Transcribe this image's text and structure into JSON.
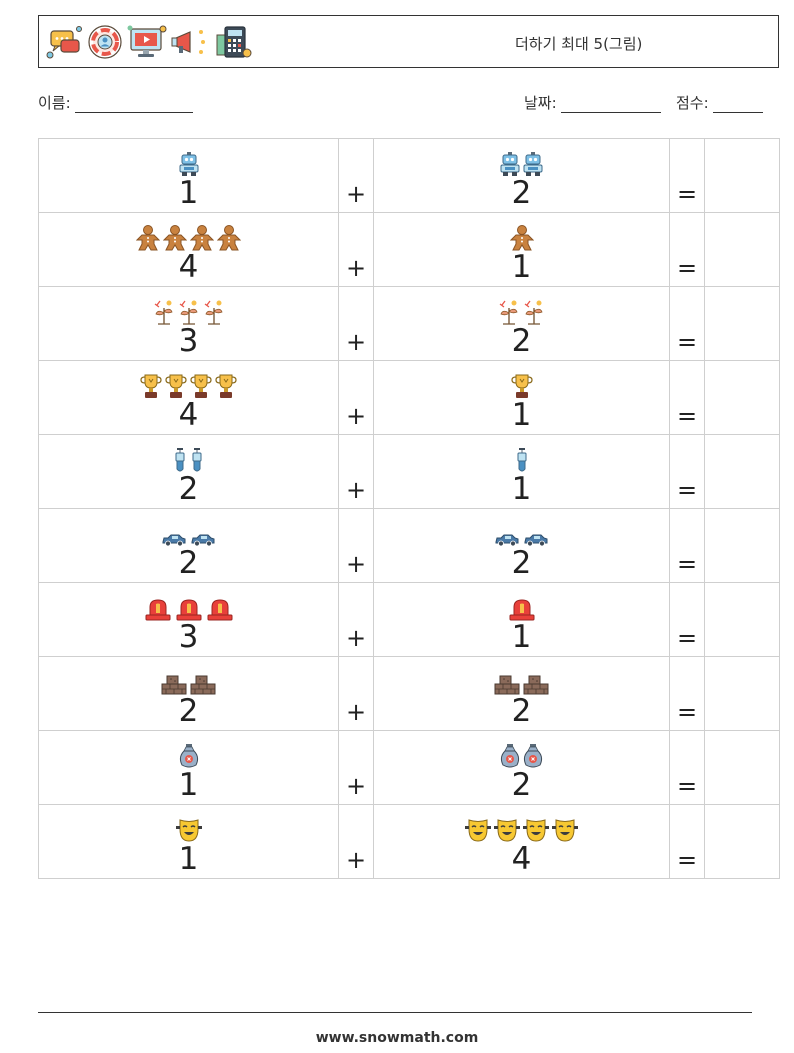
{
  "header": {
    "title": "더하기 최대 5(그림)",
    "icons": [
      "chat-bubbles-icon",
      "support-lifebuoy-icon",
      "video-monitor-icon",
      "megaphone-icon",
      "calculator-icon"
    ]
  },
  "meta": {
    "name_label": "이름:",
    "date_label": "날짜:",
    "score_label": "점수:"
  },
  "grid": {
    "plus": "+",
    "equals": "=",
    "rows": [
      {
        "a": 1,
        "b": 2,
        "icon": "robot-icon"
      },
      {
        "a": 4,
        "b": 1,
        "icon": "gingerbread-man-icon"
      },
      {
        "a": 3,
        "b": 2,
        "icon": "seedling-icon"
      },
      {
        "a": 4,
        "b": 1,
        "icon": "trophy-icon"
      },
      {
        "a": 2,
        "b": 1,
        "icon": "test-tube-icon"
      },
      {
        "a": 2,
        "b": 2,
        "icon": "car-icon"
      },
      {
        "a": 3,
        "b": 1,
        "icon": "siren-icon"
      },
      {
        "a": 2,
        "b": 2,
        "icon": "bricks-icon"
      },
      {
        "a": 1,
        "b": 2,
        "icon": "money-bag-icon"
      },
      {
        "a": 1,
        "b": 4,
        "icon": "comedy-mask-icon"
      }
    ]
  },
  "footer": {
    "url": "www.snowmath.com"
  }
}
